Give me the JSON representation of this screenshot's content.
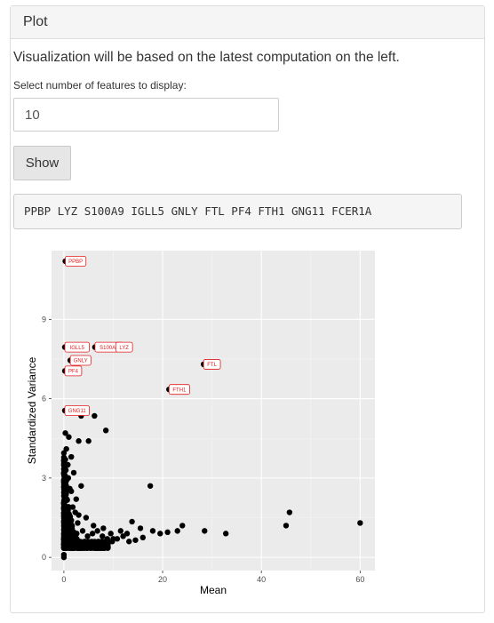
{
  "panel": {
    "title": "Plot",
    "description": "Visualization will be based on the latest computation on the left.",
    "feature_label": "Select number of features to display:",
    "feature_value": "10",
    "show_label": "Show",
    "features_text": "PPBP LYZ S100A9 IGLL5 GNLY FTL PF4 FTH1 GNG11 FCER1A"
  },
  "chart_data": {
    "type": "scatter",
    "title": "",
    "xlabel": "Mean",
    "ylabel": "Standardized Variance",
    "xlim": [
      -2.5,
      63
    ],
    "ylim": [
      -0.5,
      11.6
    ],
    "xticks": [
      0,
      20,
      40,
      60
    ],
    "yticks": [
      0,
      3,
      6,
      9
    ],
    "grid": true,
    "point_color": "#000000",
    "panel_bg": "#ebebeb",
    "label_color": "#e41a1c",
    "labels": [
      {
        "text": "PPBP",
        "x": 0.3,
        "y": 11.2
      },
      {
        "text": "IGLL5",
        "x": 0.2,
        "y": 7.95
      },
      {
        "text": "S100A9",
        "x": 6.3,
        "y": 7.95
      },
      {
        "text": "LYZ",
        "x": 10.5,
        "y": 7.95
      },
      {
        "text": "GNLY",
        "x": 1.3,
        "y": 7.45
      },
      {
        "text": "PF4",
        "x": 0.2,
        "y": 7.05
      },
      {
        "text": "FTL",
        "x": 28.3,
        "y": 7.3
      },
      {
        "text": "FTH1",
        "x": 21.3,
        "y": 6.35
      },
      {
        "text": "GNG11",
        "x": 0.2,
        "y": 5.55
      }
    ],
    "points": [
      [
        0.0,
        0.0
      ],
      [
        0.0,
        0.1
      ],
      [
        0.3,
        11.2
      ],
      [
        0.2,
        7.95
      ],
      [
        6.3,
        7.95
      ],
      [
        10.5,
        7.95
      ],
      [
        1.3,
        7.45
      ],
      [
        0.2,
        7.05
      ],
      [
        28.3,
        7.3
      ],
      [
        21.3,
        6.35
      ],
      [
        0.2,
        5.55
      ],
      [
        3.5,
        5.35
      ],
      [
        6.2,
        5.35
      ],
      [
        8.5,
        4.8
      ],
      [
        0.3,
        4.7
      ],
      [
        1.0,
        4.55
      ],
      [
        3.0,
        4.4
      ],
      [
        5.0,
        4.4
      ],
      [
        0.5,
        4.1
      ],
      [
        1.5,
        3.8
      ],
      [
        0.8,
        3.5
      ],
      [
        2.0,
        3.2
      ],
      [
        3.5,
        2.7
      ],
      [
        17.5,
        2.7
      ],
      [
        0.5,
        2.9
      ],
      [
        1.5,
        2.5
      ],
      [
        2.5,
        2.2
      ],
      [
        1.0,
        1.9
      ],
      [
        4.5,
        1.5
      ],
      [
        3.0,
        1.6
      ],
      [
        1.5,
        1.4
      ],
      [
        6.0,
        1.2
      ],
      [
        8.0,
        1.1
      ],
      [
        13.8,
        1.35
      ],
      [
        24.0,
        1.2
      ],
      [
        28.5,
        1.0
      ],
      [
        32.8,
        0.9
      ],
      [
        45.0,
        1.2
      ],
      [
        45.7,
        1.7
      ],
      [
        60.0,
        1.3
      ],
      [
        18.0,
        1.0
      ],
      [
        15.5,
        1.1
      ],
      [
        21.0,
        0.95
      ],
      [
        19.5,
        0.9
      ],
      [
        12.0,
        0.8
      ],
      [
        10.0,
        0.7
      ],
      [
        7.0,
        0.6
      ],
      [
        5.0,
        0.5
      ],
      [
        3.0,
        0.4
      ],
      [
        2.0,
        0.35
      ],
      [
        16.0,
        0.75
      ],
      [
        14.5,
        0.65
      ],
      [
        11.5,
        1.0
      ],
      [
        9.5,
        0.9
      ],
      [
        23.0,
        1.0
      ],
      [
        0.9,
        3.0
      ],
      [
        1.2,
        2.6
      ],
      [
        0.6,
        2.2
      ],
      [
        2.8,
        1.3
      ],
      [
        3.8,
        1.0
      ],
      [
        4.8,
        0.8
      ],
      [
        5.8,
        0.9
      ],
      [
        6.8,
        1.0
      ],
      [
        7.8,
        0.8
      ],
      [
        8.8,
        0.7
      ],
      [
        9.8,
        0.6
      ],
      [
        10.8,
        0.7
      ],
      [
        12.8,
        0.9
      ],
      [
        13.2,
        0.6
      ],
      [
        0.4,
        3.3
      ],
      [
        0.7,
        2.6
      ],
      [
        1.8,
        1.9
      ],
      [
        2.3,
        1.7
      ],
      [
        0.3,
        3.7
      ],
      [
        1.1,
        1.2
      ],
      [
        2.6,
        0.9
      ]
    ]
  }
}
